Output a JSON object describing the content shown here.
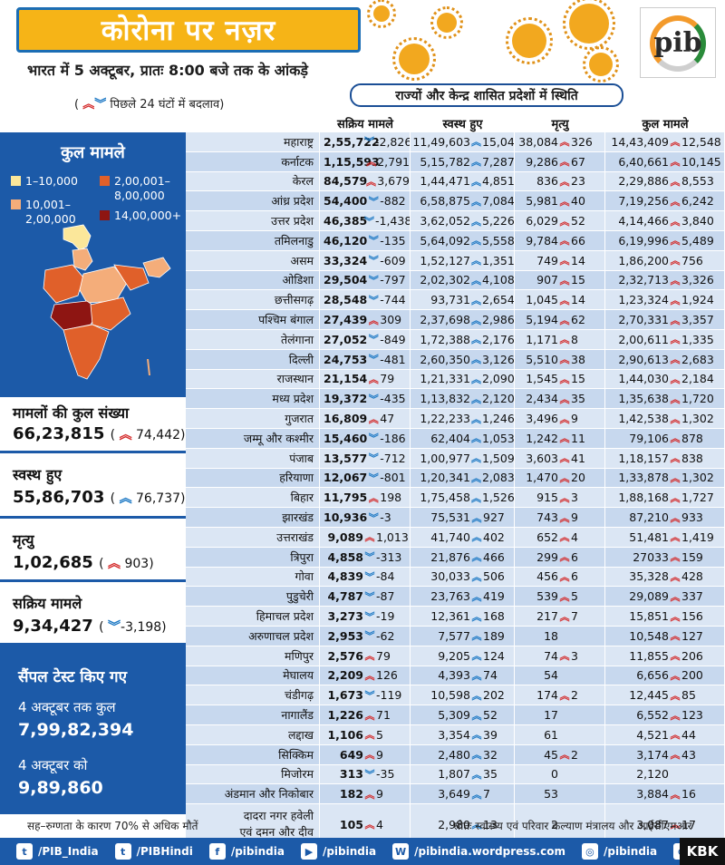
{
  "header": {
    "title": "कोरोना पर नज़र",
    "subtitle": "भारत में 5 अक्टूबर, प्रातः 8:00 बजे तक के आंकड़े",
    "change_legend": "पिछले 24 घंटों में बदलाव",
    "status_banner": "राज्यों और केन्द्र शासित प्रदेशों में स्थिति",
    "logo_text": "pib"
  },
  "table": {
    "columns": [
      "सक्रिय मामले",
      "स्वस्थ हुए",
      "मृत्यु",
      "कुल मामले"
    ],
    "rows": [
      {
        "state": "महाराष्ट्र",
        "active": "2,55,722",
        "active_chg": "-2,826",
        "active_dir": "down",
        "recovered": "11,49,603",
        "recovered_chg": "15,048",
        "deaths": "38,084",
        "deaths_chg": "326",
        "total": "14,43,409",
        "total_chg": "12,548"
      },
      {
        "state": "कर्नाटक",
        "active": "1,15,593",
        "active_chg": "2,791",
        "active_dir": "up",
        "recovered": "5,15,782",
        "recovered_chg": "7,287",
        "deaths": "9,286",
        "deaths_chg": "67",
        "total": "6,40,661",
        "total_chg": "10,145"
      },
      {
        "state": "केरल",
        "active": "84,579",
        "active_chg": "3,679",
        "active_dir": "up",
        "recovered": "1,44,471",
        "recovered_chg": "4,851",
        "deaths": "836",
        "deaths_chg": "23",
        "total": "2,29,886",
        "total_chg": "8,553"
      },
      {
        "state": "आंध्र प्रदेश",
        "active": "54,400",
        "active_chg": "-882",
        "active_dir": "down",
        "recovered": "6,58,875",
        "recovered_chg": "7,084",
        "deaths": "5,981",
        "deaths_chg": "40",
        "total": "7,19,256",
        "total_chg": "6,242"
      },
      {
        "state": "उत्तर प्रदेश",
        "active": "46,385",
        "active_chg": "-1,438",
        "active_dir": "down",
        "recovered": "3,62,052",
        "recovered_chg": "5,226",
        "deaths": "6,029",
        "deaths_chg": "52",
        "total": "4,14,466",
        "total_chg": "3,840"
      },
      {
        "state": "तमिलनाडु",
        "active": "46,120",
        "active_chg": "-135",
        "active_dir": "down",
        "recovered": "5,64,092",
        "recovered_chg": "5,558",
        "deaths": "9,784",
        "deaths_chg": "66",
        "total": "6,19,996",
        "total_chg": "5,489"
      },
      {
        "state": "असम",
        "active": "33,324",
        "active_chg": "-609",
        "active_dir": "down",
        "recovered": "1,52,127",
        "recovered_chg": "1,351",
        "deaths": "749",
        "deaths_chg": "14",
        "total": "1,86,200",
        "total_chg": "756"
      },
      {
        "state": "ओडिशा",
        "active": "29,504",
        "active_chg": "-797",
        "active_dir": "down",
        "recovered": "2,02,302",
        "recovered_chg": "4,108",
        "deaths": "907",
        "deaths_chg": "15",
        "total": "2,32,713",
        "total_chg": "3,326"
      },
      {
        "state": "छत्तीसगढ़",
        "active": "28,548",
        "active_chg": "-744",
        "active_dir": "down",
        "recovered": "93,731",
        "recovered_chg": "2,654",
        "deaths": "1,045",
        "deaths_chg": "14",
        "total": "1,23,324",
        "total_chg": "1,924"
      },
      {
        "state": "पश्चिम बंगाल",
        "active": "27,439",
        "active_chg": "309",
        "active_dir": "up",
        "recovered": "2,37,698",
        "recovered_chg": "2,986",
        "deaths": "5,194",
        "deaths_chg": "62",
        "total": "2,70,331",
        "total_chg": "3,357"
      },
      {
        "state": "तेलंगाना",
        "active": "27,052",
        "active_chg": "-849",
        "active_dir": "down",
        "recovered": "1,72,388",
        "recovered_chg": "2,176",
        "deaths": "1,171",
        "deaths_chg": "8",
        "total": "2,00,611",
        "total_chg": "1,335"
      },
      {
        "state": "दिल्ली",
        "active": "24,753",
        "active_chg": "-481",
        "active_dir": "down",
        "recovered": "2,60,350",
        "recovered_chg": "3,126",
        "deaths": "5,510",
        "deaths_chg": "38",
        "total": "2,90,613",
        "total_chg": "2,683"
      },
      {
        "state": "राजस्थान",
        "active": "21,154",
        "active_chg": "79",
        "active_dir": "up",
        "recovered": "1,21,331",
        "recovered_chg": "2,090",
        "deaths": "1,545",
        "deaths_chg": "15",
        "total": "1,44,030",
        "total_chg": "2,184"
      },
      {
        "state": "मध्य प्रदेश",
        "active": "19,372",
        "active_chg": "-435",
        "active_dir": "down",
        "recovered": "1,13,832",
        "recovered_chg": "2,120",
        "deaths": "2,434",
        "deaths_chg": "35",
        "total": "1,35,638",
        "total_chg": "1,720"
      },
      {
        "state": "गुजरात",
        "active": "16,809",
        "active_chg": "47",
        "active_dir": "up",
        "recovered": "1,22,233",
        "recovered_chg": "1,246",
        "deaths": "3,496",
        "deaths_chg": "9",
        "total": "1,42,538",
        "total_chg": "1,302"
      },
      {
        "state": "जम्मू और कश्मीर",
        "active": "15,460",
        "active_chg": "-186",
        "active_dir": "down",
        "recovered": "62,404",
        "recovered_chg": "1,053",
        "deaths": "1,242",
        "deaths_chg": "11",
        "total": "79,106",
        "total_chg": "878"
      },
      {
        "state": "पंजाब",
        "active": "13,577",
        "active_chg": "-712",
        "active_dir": "down",
        "recovered": "1,00,977",
        "recovered_chg": "1,509",
        "deaths": "3,603",
        "deaths_chg": "41",
        "total": "1,18,157",
        "total_chg": "838"
      },
      {
        "state": "हरियाणा",
        "active": "12,067",
        "active_chg": "-801",
        "active_dir": "down",
        "recovered": "1,20,341",
        "recovered_chg": "2,083",
        "deaths": "1,470",
        "deaths_chg": "20",
        "total": "1,33,878",
        "total_chg": "1,302"
      },
      {
        "state": "बिहार",
        "active": "11,795",
        "active_chg": "198",
        "active_dir": "up",
        "recovered": "1,75,458",
        "recovered_chg": "1,526",
        "deaths": "915",
        "deaths_chg": "3",
        "total": "1,88,168",
        "total_chg": "1,727"
      },
      {
        "state": "झारखंड",
        "active": "10,936",
        "active_chg": "-3",
        "active_dir": "down",
        "recovered": "75,531",
        "recovered_chg": "927",
        "deaths": "743",
        "deaths_chg": "9",
        "total": "87,210",
        "total_chg": "933"
      },
      {
        "state": "उत्तराखंड",
        "active": "9,089",
        "active_chg": "1,013",
        "active_dir": "up",
        "recovered": "41,740",
        "recovered_chg": "402",
        "deaths": "652",
        "deaths_chg": "4",
        "total": "51,481",
        "total_chg": "1,419"
      },
      {
        "state": "त्रिपुरा",
        "active": "4,858",
        "active_chg": "-313",
        "active_dir": "down",
        "recovered": "21,876",
        "recovered_chg": "466",
        "deaths": "299",
        "deaths_chg": "6",
        "total": "27033",
        "total_chg": "159"
      },
      {
        "state": "गोवा",
        "active": "4,839",
        "active_chg": "-84",
        "active_dir": "down",
        "recovered": "30,033",
        "recovered_chg": "506",
        "deaths": "456",
        "deaths_chg": "6",
        "total": "35,328",
        "total_chg": "428"
      },
      {
        "state": "पुडुचेरी",
        "active": "4,787",
        "active_chg": "-87",
        "active_dir": "down",
        "recovered": "23,763",
        "recovered_chg": "419",
        "deaths": "539",
        "deaths_chg": "5",
        "total": "29,089",
        "total_chg": "337"
      },
      {
        "state": "हिमाचल प्रदेश",
        "active": "3,273",
        "active_chg": "-19",
        "active_dir": "down",
        "recovered": "12,361",
        "recovered_chg": "168",
        "deaths": "217",
        "deaths_chg": "7",
        "total": "15,851",
        "total_chg": "156"
      },
      {
        "state": "अरुणाचल प्रदेश",
        "active": "2,953",
        "active_chg": "-62",
        "active_dir": "down",
        "recovered": "7,577",
        "recovered_chg": "189",
        "deaths": "18",
        "deaths_chg": "",
        "total": "10,548",
        "total_chg": "127"
      },
      {
        "state": "मणिपुर",
        "active": "2,576",
        "active_chg": "79",
        "active_dir": "up",
        "recovered": "9,205",
        "recovered_chg": "124",
        "deaths": "74",
        "deaths_chg": "3",
        "total": "11,855",
        "total_chg": "206"
      },
      {
        "state": "मेघालय",
        "active": "2,209",
        "active_chg": "126",
        "active_dir": "up",
        "recovered": "4,393",
        "recovered_chg": "74",
        "deaths": "54",
        "deaths_chg": "",
        "total": "6,656",
        "total_chg": "200"
      },
      {
        "state": "चंडीगढ़",
        "active": "1,673",
        "active_chg": "-119",
        "active_dir": "down",
        "recovered": "10,598",
        "recovered_chg": "202",
        "deaths": "174",
        "deaths_chg": "2",
        "total": "12,445",
        "total_chg": "85"
      },
      {
        "state": "नागालैंड",
        "active": "1,226",
        "active_chg": "71",
        "active_dir": "up",
        "recovered": "5,309",
        "recovered_chg": "52",
        "deaths": "17",
        "deaths_chg": "",
        "total": "6,552",
        "total_chg": "123"
      },
      {
        "state": "लद्दाख",
        "active": "1,106",
        "active_chg": "5",
        "active_dir": "up",
        "recovered": "3,354",
        "recovered_chg": "39",
        "deaths": "61",
        "deaths_chg": "",
        "total": "4,521",
        "total_chg": "44"
      },
      {
        "state": "सिक्किम",
        "active": "649",
        "active_chg": "9",
        "active_dir": "up",
        "recovered": "2,480",
        "recovered_chg": "32",
        "deaths": "45",
        "deaths_chg": "2",
        "total": "3,174",
        "total_chg": "43"
      },
      {
        "state": "मिजोरम",
        "active": "313",
        "active_chg": "-35",
        "active_dir": "down",
        "recovered": "1,807",
        "recovered_chg": "35",
        "deaths": "0",
        "deaths_chg": "",
        "total": "2,120",
        "total_chg": ""
      },
      {
        "state": "अंडमान और निकोबार",
        "active": "182",
        "active_chg": "9",
        "active_dir": "up",
        "recovered": "3,649",
        "recovered_chg": "7",
        "deaths": "53",
        "deaths_chg": "",
        "total": "3,884",
        "total_chg": "16"
      },
      {
        "state": "दादरा नगर हवेली",
        "state2": "एवं दमन और दीव",
        "active": "105",
        "active_chg": "4",
        "active_dir": "up",
        "recovered": "2,980",
        "recovered_chg": "13",
        "deaths": "2",
        "deaths_chg": "",
        "total": "3,087",
        "total_chg": "17"
      }
    ]
  },
  "left": {
    "total_cases_title": "कुल मामले",
    "legend": [
      "1–10,000",
      "10,001–",
      "2,00,000",
      "2,00,001–",
      "8,00,000",
      "14,00,000+"
    ],
    "legend_colors": [
      "#fbe79a",
      "#f4ad7a",
      "#e0602a",
      "#8e1512"
    ],
    "total_count_label": "मामलों की कुल संख्या",
    "total_count": "66,23,815",
    "total_count_chg": "74,442",
    "recovered_label": "स्वस्थ हुए",
    "recovered": "55,86,703",
    "recovered_chg": "76,737",
    "deaths_label": "मृत्यु",
    "deaths": "1,02,685",
    "deaths_chg": "903",
    "active_label": "सक्रिय मामले",
    "active": "9,34,427",
    "active_chg": "-3,198",
    "tests_title": "सैंपल टेस्ट किए गए",
    "tests_total_label": "4 अक्टूबर तक कुल",
    "tests_total": "7,99,82,394",
    "tests_day_label": "4 अक्टूबर को",
    "tests_day": "9,89,860"
  },
  "footer": {
    "note": "सह–रुग्णता के कारण 70% से अधिक मौतें",
    "source": "स्रोतः स्वास्थ्य एवं परिवार कल्याण मंत्रालय और आईसीएमआर",
    "social": [
      {
        "icon": "twitter-icon",
        "label": "/PIB_India"
      },
      {
        "icon": "twitter-icon",
        "label": "/PIBHindi"
      },
      {
        "icon": "facebook-icon",
        "label": "/pibindia"
      },
      {
        "icon": "youtube-icon",
        "label": "/pibindia"
      },
      {
        "icon": "wordpress-icon",
        "label": "/pibindia.wordpress.com"
      },
      {
        "icon": "instagram-icon",
        "label": "/pibindia"
      },
      {
        "icon": "globe-icon",
        "label": "pib.gov.in"
      }
    ],
    "badge": "KBK"
  }
}
